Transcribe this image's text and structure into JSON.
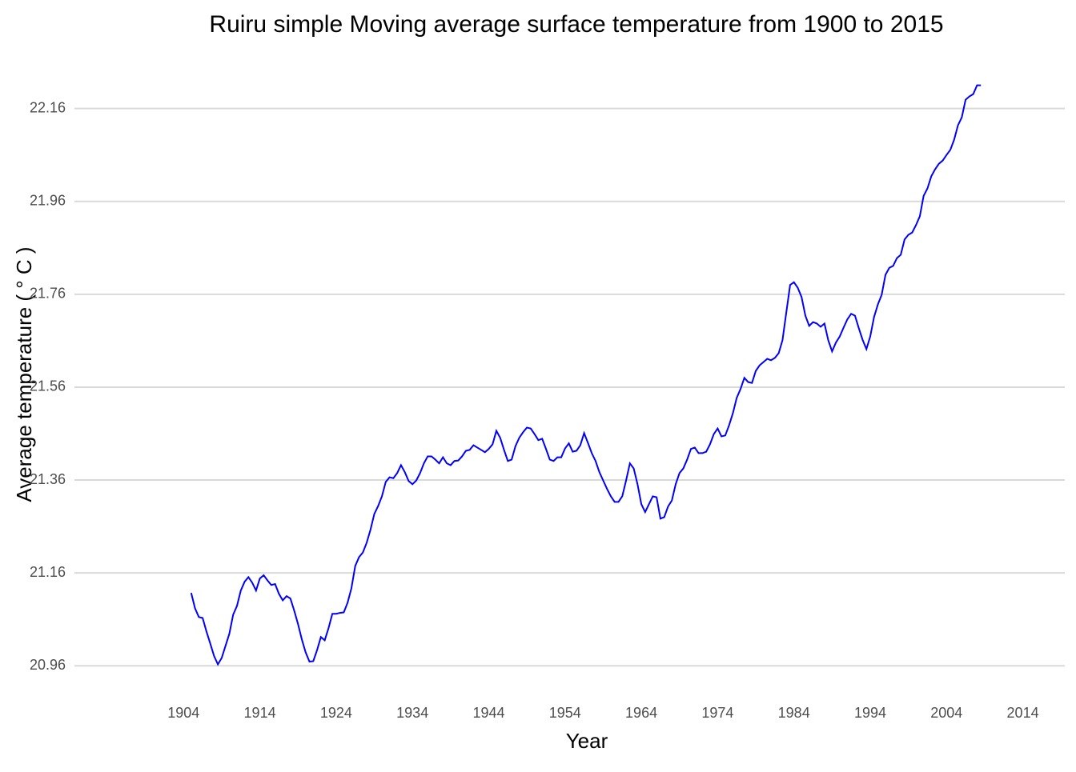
{
  "chart_data": {
    "type": "line",
    "title": "Ruiru simple Moving average surface temperature from 1900 to 2015",
    "x_label": "Year",
    "y_label": "Average temperature ( ° C )",
    "grid": "y",
    "xlim": [
      1889.7,
      2019.5
    ],
    "ylim": [
      20.895,
      22.23
    ],
    "xticks": [
      1904,
      1914,
      1924,
      1934,
      1944,
      1954,
      1964,
      1974,
      1984,
      1994,
      2004,
      2014
    ],
    "yticks": [
      {
        "value": 20.96,
        "label": "20.96"
      },
      {
        "value": 21.16,
        "label": "21.16"
      },
      {
        "value": 21.36,
        "label": "21.36"
      },
      {
        "value": 21.56,
        "label": "21.56"
      },
      {
        "value": 21.76,
        "label": "21.76"
      },
      {
        "value": 21.96,
        "label": "21.96"
      },
      {
        "value": 22.16,
        "label": "22.16"
      }
    ],
    "x": [
      1905,
      1905.5,
      1906,
      1906.5,
      1907,
      1907.5,
      1908,
      1908.5,
      1909,
      1909.5,
      1910,
      1910.5,
      1911,
      1911.5,
      1912,
      1912.5,
      1913,
      1913.5,
      1914,
      1914.5,
      1915,
      1915.5,
      1916,
      1916.5,
      1917,
      1917.5,
      1918,
      1918.5,
      1919,
      1919.5,
      1920,
      1920.5,
      1921,
      1921.5,
      1922,
      1922.5,
      1923,
      1923.5,
      1924,
      1924.5,
      1925,
      1925.5,
      1926,
      1926.5,
      1927,
      1927.5,
      1928,
      1928.5,
      1929,
      1929.5,
      1930,
      1930.5,
      1931,
      1931.5,
      1932,
      1932.5,
      1933,
      1933.5,
      1934,
      1934.5,
      1935,
      1935.5,
      1936,
      1936.5,
      1937,
      1937.5,
      1938,
      1938.5,
      1939,
      1939.5,
      1940,
      1940.5,
      1941,
      1941.5,
      1942,
      1942.5,
      1943,
      1943.5,
      1944,
      1944.5,
      1945,
      1945.5,
      1946,
      1946.5,
      1947,
      1947.5,
      1948,
      1948.5,
      1949,
      1949.5,
      1950,
      1950.5,
      1951,
      1951.5,
      1952,
      1952.5,
      1953,
      1953.5,
      1954,
      1954.5,
      1955,
      1955.5,
      1956,
      1956.5,
      1957,
      1957.5,
      1958,
      1958.5,
      1959,
      1959.5,
      1960,
      1960.5,
      1961,
      1961.5,
      1962,
      1962.5,
      1963,
      1963.5,
      1964,
      1964.5,
      1965,
      1965.5,
      1966,
      1966.5,
      1967,
      1967.5,
      1968,
      1968.5,
      1969,
      1969.5,
      1970,
      1970.5,
      1971,
      1971.5,
      1972,
      1972.5,
      1973,
      1973.5,
      1974,
      1974.5,
      1975,
      1975.5,
      1976,
      1976.5,
      1977,
      1977.5,
      1978,
      1978.5,
      1979,
      1979.5,
      1980,
      1980.5,
      1981,
      1981.5,
      1982,
      1982.5,
      1983,
      1983.5,
      1984,
      1984.5,
      1985,
      1985.5,
      1986,
      1986.5,
      1987,
      1987.5,
      1988,
      1988.5,
      1989,
      1989.5,
      1990,
      1990.5,
      1991,
      1991.5,
      1992,
      1992.5,
      1993,
      1993.5,
      1994,
      1994.5,
      1995,
      1995.5,
      1996,
      1996.5,
      1997,
      1997.5,
      1998,
      1998.5,
      1999,
      1999.5,
      2000,
      2000.5,
      2001,
      2001.5,
      2002,
      2002.5,
      2003,
      2003.5,
      2004,
      2004.5,
      2005,
      2005.5,
      2006,
      2006.5,
      2007,
      2007.5,
      2008,
      2008.5
    ],
    "series": [
      {
        "color": "#0000ff",
        "values": [
          21.117,
          21.084,
          21.065,
          21.063,
          21.034,
          21.008,
          20.981,
          20.963,
          20.977,
          21.003,
          21.029,
          21.07,
          21.089,
          21.122,
          21.141,
          21.151,
          21.139,
          21.122,
          21.148,
          21.155,
          21.144,
          21.134,
          21.136,
          21.115,
          21.101,
          21.11,
          21.105,
          21.079,
          21.05,
          21.017,
          20.989,
          20.969,
          20.97,
          20.994,
          21.022,
          21.015,
          21.041,
          21.072,
          21.072,
          21.074,
          21.075,
          21.096,
          21.127,
          21.175,
          21.194,
          21.204,
          21.225,
          21.253,
          21.287,
          21.304,
          21.325,
          21.356,
          21.366,
          21.364,
          21.375,
          21.392,
          21.377,
          21.358,
          21.351,
          21.359,
          21.375,
          21.396,
          21.411,
          21.411,
          21.404,
          21.396,
          21.409,
          21.396,
          21.392,
          21.401,
          21.402,
          21.411,
          21.423,
          21.425,
          21.435,
          21.43,
          21.425,
          21.42,
          21.427,
          21.437,
          21.466,
          21.451,
          21.425,
          21.401,
          21.404,
          21.433,
          21.451,
          21.463,
          21.473,
          21.471,
          21.459,
          21.446,
          21.449,
          21.427,
          21.404,
          21.401,
          21.409,
          21.409,
          21.428,
          21.439,
          21.421,
          21.423,
          21.435,
          21.461,
          21.44,
          21.418,
          21.401,
          21.377,
          21.359,
          21.341,
          21.325,
          21.313,
          21.313,
          21.325,
          21.359,
          21.396,
          21.385,
          21.351,
          21.308,
          21.291,
          21.308,
          21.325,
          21.323,
          21.277,
          21.28,
          21.303,
          21.316,
          21.351,
          21.375,
          21.385,
          21.404,
          21.427,
          21.43,
          21.418,
          21.418,
          21.421,
          21.437,
          21.459,
          21.471,
          21.454,
          21.456,
          21.478,
          21.504,
          21.537,
          21.556,
          21.58,
          21.571,
          21.569,
          21.595,
          21.607,
          21.614,
          21.621,
          21.618,
          21.623,
          21.633,
          21.661,
          21.721,
          21.78,
          21.786,
          21.774,
          21.754,
          21.714,
          21.692,
          21.7,
          21.697,
          21.69,
          21.697,
          21.661,
          21.637,
          21.656,
          21.669,
          21.688,
          21.706,
          21.718,
          21.714,
          21.687,
          21.662,
          21.642,
          21.669,
          21.711,
          21.738,
          21.759,
          21.802,
          21.817,
          21.821,
          21.838,
          21.845,
          21.878,
          21.888,
          21.893,
          21.909,
          21.928,
          21.972,
          21.988,
          22.014,
          22.029,
          22.041,
          22.048,
          22.06,
          22.071,
          22.093,
          22.124,
          22.141,
          22.179,
          22.186,
          22.191,
          22.21,
          22.21
        ]
      }
    ]
  }
}
